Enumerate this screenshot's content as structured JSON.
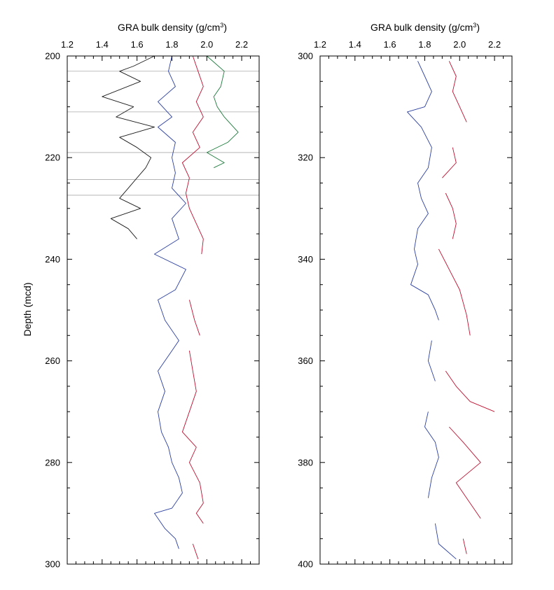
{
  "chart_data": [
    {
      "type": "line",
      "panel": "left",
      "title": "",
      "xlabel_text": "GRA bulk density (g/cm",
      "xlabel_sup": "3",
      "xlabel_close": ")",
      "ylabel": "Depth (mcd)",
      "xlim": [
        1.2,
        2.3
      ],
      "ylim": [
        200,
        300
      ],
      "y_inverted": true,
      "x_ticks": [
        "1.2",
        "1.4",
        "1.6",
        "1.8",
        "2.0",
        "2.2"
      ],
      "y_ticks": [
        "200",
        "220",
        "240",
        "260",
        "280",
        "300"
      ],
      "grid": false,
      "horizontal_lines": [
        203,
        211,
        219,
        224.3,
        227.4
      ],
      "series": [
        {
          "color": "#1a1a1a",
          "points": [
            [
              1.7,
              200
            ],
            [
              1.58,
              202
            ],
            [
              1.5,
              203
            ],
            [
              1.62,
              205
            ],
            [
              1.4,
              208
            ],
            [
              1.58,
              210
            ],
            [
              1.48,
              212
            ],
            [
              1.7,
              214
            ],
            [
              1.5,
              216
            ],
            [
              1.6,
              218
            ],
            [
              1.68,
              220
            ],
            [
              1.65,
              222
            ],
            [
              1.6,
              224
            ],
            [
              1.55,
              226
            ],
            [
              1.5,
              228
            ],
            [
              1.62,
              230
            ],
            [
              1.45,
              232
            ],
            [
              1.55,
              234
            ],
            [
              1.6,
              236
            ]
          ]
        },
        {
          "color": "#1a7a3a",
          "points": [
            [
              2.0,
              200
            ],
            [
              2.1,
              203
            ],
            [
              2.08,
              206
            ],
            [
              2.04,
              208
            ],
            [
              2.06,
              210
            ],
            [
              2.1,
              212
            ],
            [
              2.18,
              215
            ],
            [
              2.12,
              217
            ],
            [
              2.0,
              219
            ],
            [
              2.1,
              221
            ],
            [
              2.04,
              222
            ]
          ]
        },
        {
          "color": "#2b3fa0",
          "points": [
            [
              1.8,
              200
            ],
            [
              1.78,
              203
            ],
            [
              1.82,
              206
            ],
            [
              1.72,
              209
            ],
            [
              1.8,
              212
            ],
            [
              1.72,
              214
            ],
            [
              1.82,
              217
            ],
            [
              1.8,
              220
            ],
            [
              1.82,
              223
            ],
            [
              1.8,
              226
            ],
            [
              1.88,
              229
            ],
            [
              1.8,
              232
            ],
            [
              1.84,
              236
            ],
            [
              1.7,
              239
            ],
            [
              1.88,
              242
            ],
            [
              1.82,
              246
            ],
            [
              1.72,
              248
            ],
            [
              1.76,
              252
            ],
            [
              1.84,
              256
            ],
            [
              1.8,
              258
            ],
            [
              1.72,
              262
            ],
            [
              1.76,
              266
            ],
            [
              1.72,
              270
            ],
            [
              1.74,
              274
            ],
            [
              1.78,
              277
            ],
            [
              1.8,
              280
            ],
            [
              1.84,
              283
            ],
            [
              1.86,
              286
            ],
            [
              1.8,
              289
            ],
            [
              1.7,
              290
            ],
            [
              1.76,
              293
            ],
            [
              1.82,
              295
            ],
            [
              1.84,
              297
            ]
          ]
        },
        {
          "color": "#c01030",
          "points": [
            [
              1.92,
              200
            ],
            [
              1.95,
              203
            ],
            [
              1.98,
              206
            ],
            [
              1.94,
              209
            ],
            [
              1.98,
              212
            ],
            [
              1.92,
              215
            ],
            [
              1.96,
              218
            ],
            [
              1.86,
              221
            ],
            [
              1.9,
              224
            ],
            [
              1.88,
              227
            ],
            [
              1.9,
              230
            ],
            [
              1.94,
              233
            ],
            [
              1.98,
              236
            ],
            [
              1.97,
              239
            ],
            [
              null,
              null
            ],
            [
              1.9,
              248
            ],
            [
              1.93,
              252
            ],
            [
              1.96,
              255
            ],
            [
              null,
              null
            ],
            [
              1.9,
              258
            ],
            [
              1.92,
              262
            ],
            [
              1.94,
              266
            ],
            [
              1.9,
              270
            ],
            [
              1.86,
              274
            ],
            [
              1.94,
              277
            ],
            [
              1.9,
              280
            ],
            [
              1.96,
              284
            ],
            [
              1.98,
              288
            ],
            [
              1.94,
              290
            ],
            [
              1.98,
              292
            ],
            [
              null,
              null
            ],
            [
              1.92,
              296
            ],
            [
              1.95,
              299
            ]
          ]
        }
      ]
    },
    {
      "type": "line",
      "panel": "right",
      "title": "",
      "xlabel_text": "GRA bulk density (g/cm",
      "xlabel_sup": "3",
      "xlabel_close": ")",
      "ylabel": "",
      "xlim": [
        1.2,
        2.3
      ],
      "ylim": [
        300,
        400
      ],
      "y_inverted": true,
      "x_ticks": [
        "1.2",
        "1.4",
        "1.6",
        "1.8",
        "2.0",
        "2.2"
      ],
      "y_ticks": [
        "300",
        "320",
        "340",
        "360",
        "380",
        "400"
      ],
      "grid": false,
      "horizontal_lines": [],
      "series": [
        {
          "color": "#2b3fa0",
          "points": [
            [
              1.76,
              301
            ],
            [
              1.8,
              304
            ],
            [
              1.84,
              307
            ],
            [
              1.8,
              310
            ],
            [
              1.7,
              311
            ],
            [
              1.78,
              314
            ],
            [
              1.84,
              318
            ],
            [
              1.82,
              322
            ],
            [
              1.76,
              325
            ],
            [
              1.78,
              328
            ],
            [
              1.82,
              331
            ],
            [
              1.76,
              334
            ],
            [
              1.74,
              338
            ],
            [
              1.76,
              341
            ],
            [
              1.72,
              345
            ],
            [
              1.82,
              347
            ],
            [
              1.86,
              350
            ],
            [
              1.88,
              352
            ],
            [
              null,
              null
            ],
            [
              1.84,
              356
            ],
            [
              1.82,
              360
            ],
            [
              1.86,
              364
            ],
            [
              null,
              null
            ],
            [
              1.82,
              370
            ],
            [
              1.8,
              373
            ],
            [
              1.86,
              376
            ],
            [
              1.88,
              379
            ],
            [
              1.84,
              383
            ],
            [
              1.82,
              387
            ],
            [
              null,
              null
            ],
            [
              1.86,
              392
            ],
            [
              1.88,
              396
            ],
            [
              1.98,
              399
            ]
          ]
        },
        {
          "color": "#c01030",
          "points": [
            [
              1.94,
              301
            ],
            [
              1.98,
              304
            ],
            [
              1.96,
              307
            ],
            [
              2.0,
              310
            ],
            [
              2.04,
              313
            ],
            [
              null,
              null
            ],
            [
              1.96,
              318
            ],
            [
              1.98,
              321
            ],
            [
              1.9,
              324
            ],
            [
              null,
              null
            ],
            [
              1.92,
              327
            ],
            [
              1.96,
              330
            ],
            [
              1.98,
              333
            ],
            [
              1.96,
              336
            ],
            [
              null,
              null
            ],
            [
              1.88,
              338
            ],
            [
              1.94,
              342
            ],
            [
              2.0,
              346
            ],
            [
              2.04,
              351
            ],
            [
              2.06,
              355
            ],
            [
              null,
              null
            ],
            [
              1.92,
              362
            ],
            [
              1.98,
              365
            ],
            [
              2.06,
              368
            ],
            [
              2.2,
              370
            ],
            [
              null,
              null
            ],
            [
              1.94,
              373
            ],
            [
              2.02,
              376
            ],
            [
              2.12,
              380
            ],
            [
              1.98,
              384
            ],
            [
              2.06,
              388
            ],
            [
              2.12,
              391
            ],
            [
              null,
              null
            ],
            [
              2.02,
              395
            ],
            [
              2.04,
              398
            ]
          ]
        }
      ]
    }
  ]
}
